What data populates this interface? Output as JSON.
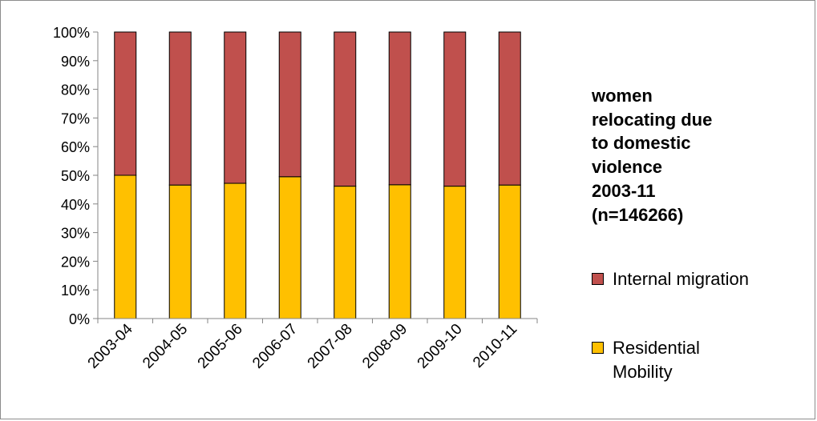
{
  "chart_data": {
    "type": "bar",
    "stacked": true,
    "categories": [
      "2003-04",
      "2004-05",
      "2005-06",
      "2006-07",
      "2007-08",
      "2008-09",
      "2009-10",
      "2010-11"
    ],
    "series": [
      {
        "name": "Residential Mobility",
        "color": "#FFC000",
        "values": [
          50,
          46.6,
          47.2,
          49.5,
          46.2,
          46.7,
          46.2,
          46.6
        ]
      },
      {
        "name": "Internal migration",
        "color": "#C0504D",
        "values": [
          50,
          53.4,
          52.8,
          50.5,
          53.8,
          53.3,
          53.8,
          53.4
        ]
      }
    ],
    "title_lines": [
      "women",
      "relocating due",
      "to domestic",
      "violence",
      "2003-11",
      "(n=146266)"
    ],
    "legend": [
      {
        "series": 1,
        "lines": [
          "Internal migration"
        ]
      },
      {
        "series": 0,
        "lines": [
          "Residential",
          "Mobility"
        ]
      }
    ],
    "yticks": [
      "0%",
      "10%",
      "20%",
      "30%",
      "40%",
      "50%",
      "60%",
      "70%",
      "80%",
      "90%",
      "100%"
    ],
    "ylim": [
      0,
      100
    ],
    "y_unit": "%",
    "grid": false,
    "legend_position": "right",
    "xlabel": "",
    "ylabel": ""
  }
}
